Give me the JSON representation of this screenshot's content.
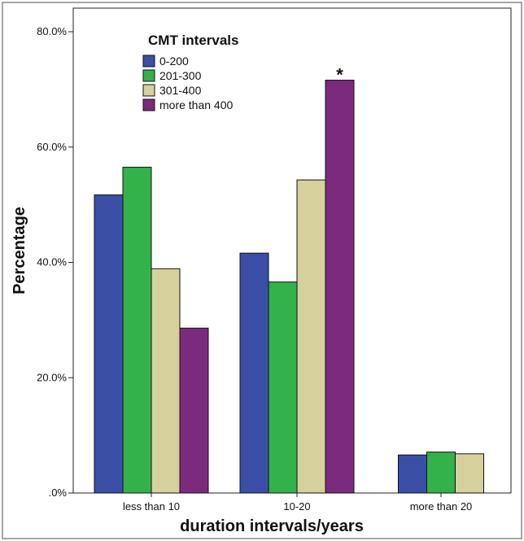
{
  "chart_data": {
    "type": "bar",
    "categories": [
      "less than 10",
      "10-20",
      "more than 20"
    ],
    "series": [
      {
        "name": "0-200",
        "color": "#3b4ea8",
        "values": [
          51.7,
          41.6,
          6.6
        ]
      },
      {
        "name": "201-300",
        "color": "#33b24a",
        "values": [
          56.5,
          36.6,
          7.1
        ]
      },
      {
        "name": "301-400",
        "color": "#d6d19c",
        "values": [
          38.9,
          54.3,
          6.8
        ]
      },
      {
        "name": "more than 400",
        "color": "#7b2a7e",
        "values": [
          28.6,
          71.6,
          0
        ]
      }
    ],
    "xlabel": "duration intervals/years",
    "ylabel": "Percentage",
    "ylim": [
      0,
      80
    ],
    "yticks": [
      "80.0%",
      "60.0%",
      "40.0%",
      "20.0%",
      ".0%"
    ],
    "legend": {
      "title": "CMT intervals",
      "position": "top-left"
    },
    "annotation": {
      "text": "*",
      "category": "10-20",
      "series": "more than 400"
    },
    "grid": false
  }
}
